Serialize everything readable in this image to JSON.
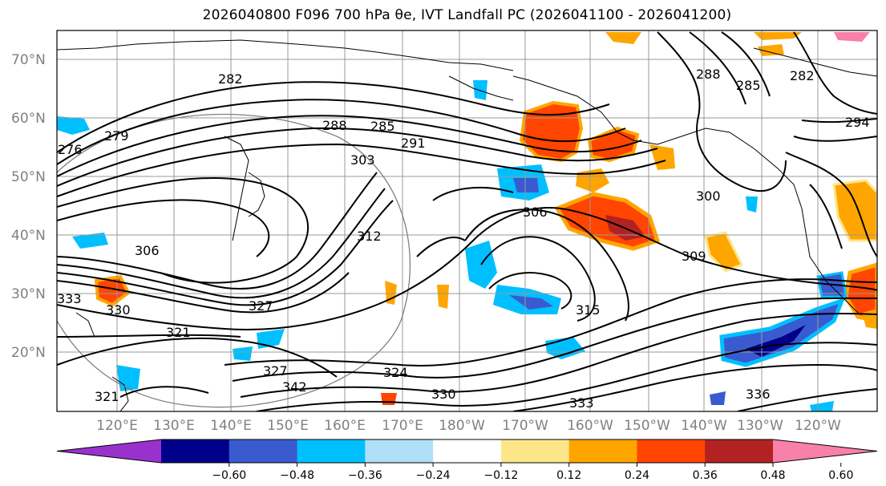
{
  "title": "2026040800 F096 700 hPa θe, IVT Landfall PC (2026041100 - 2026041200)",
  "latitude_labels": [
    "70°N",
    "60°N",
    "50°N",
    "40°N",
    "30°N",
    "20°N"
  ],
  "longitude_labels": [
    "120°E",
    "130°E",
    "140°E",
    "150°E",
    "160°E",
    "170°E",
    "180°W",
    "170°W",
    "160°W",
    "150°W",
    "140°W",
    "130°W",
    "120°W"
  ],
  "colorbar": {
    "ticks": [
      "−0.60",
      "−0.48",
      "−0.36",
      "−0.24",
      "−0.12",
      "0.12",
      "0.24",
      "0.36",
      "0.48",
      "0.60"
    ],
    "colors": [
      "#9932cc",
      "#00008b",
      "#3a5bd0",
      "#00bfff",
      "#b0e0f7",
      "#ffffff",
      "#fde68a",
      "#ffa500",
      "#ff4500",
      "#b22222",
      "#f781a8"
    ]
  },
  "contour_labels": [
    "282",
    "288",
    "285",
    "291",
    "276",
    "279",
    "303",
    "306",
    "294",
    "288",
    "285",
    "282",
    "300",
    "309",
    "315",
    "306",
    "321",
    "327",
    "330",
    "333",
    "321",
    "324",
    "330",
    "333",
    "336",
    "342",
    "327",
    "312"
  ]
}
